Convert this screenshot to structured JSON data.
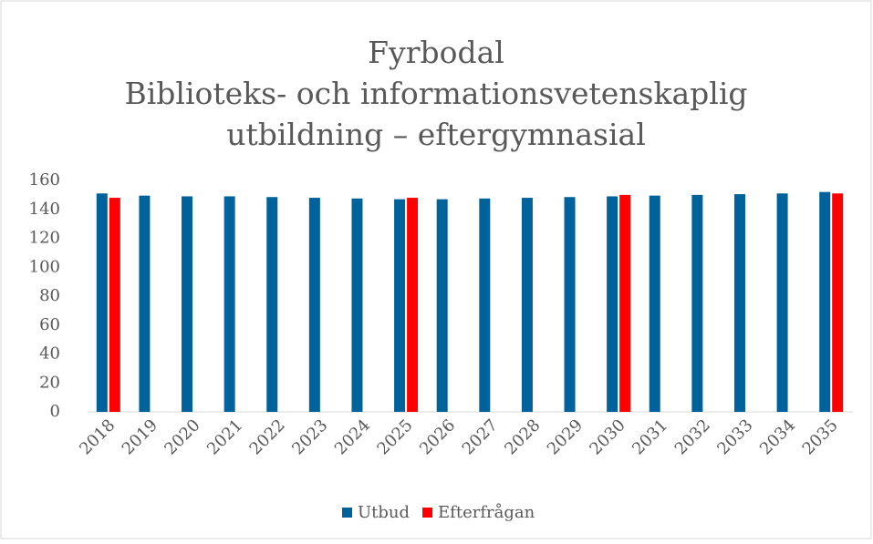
{
  "chart_data": {
    "type": "bar",
    "title": [
      "Fyrbodal",
      "Biblioteks- och informationsvetenskaplig",
      "utbildning – eftergymnasial"
    ],
    "categories": [
      "2018",
      "2019",
      "2020",
      "2021",
      "2022",
      "2023",
      "2024",
      "2025",
      "2026",
      "2027",
      "2028",
      "2029",
      "2030",
      "2031",
      "2032",
      "2033",
      "2034",
      "2035"
    ],
    "series": [
      {
        "name": "Utbud",
        "color": "#00629b",
        "values": [
          151,
          149.5,
          149,
          149,
          148.5,
          148,
          147.5,
          147,
          147,
          147.5,
          148,
          148.5,
          149,
          149.5,
          150,
          150.5,
          151,
          152
        ]
      },
      {
        "name": "Efterfrågan",
        "color": "#ff0000",
        "values": [
          148,
          null,
          null,
          null,
          null,
          null,
          null,
          148,
          null,
          null,
          null,
          null,
          150,
          null,
          null,
          null,
          null,
          151
        ]
      }
    ],
    "ylim": [
      0,
      160
    ],
    "yticks": [
      0,
      20,
      40,
      60,
      80,
      100,
      120,
      140,
      160
    ],
    "grid": false,
    "legend": "bottom"
  }
}
